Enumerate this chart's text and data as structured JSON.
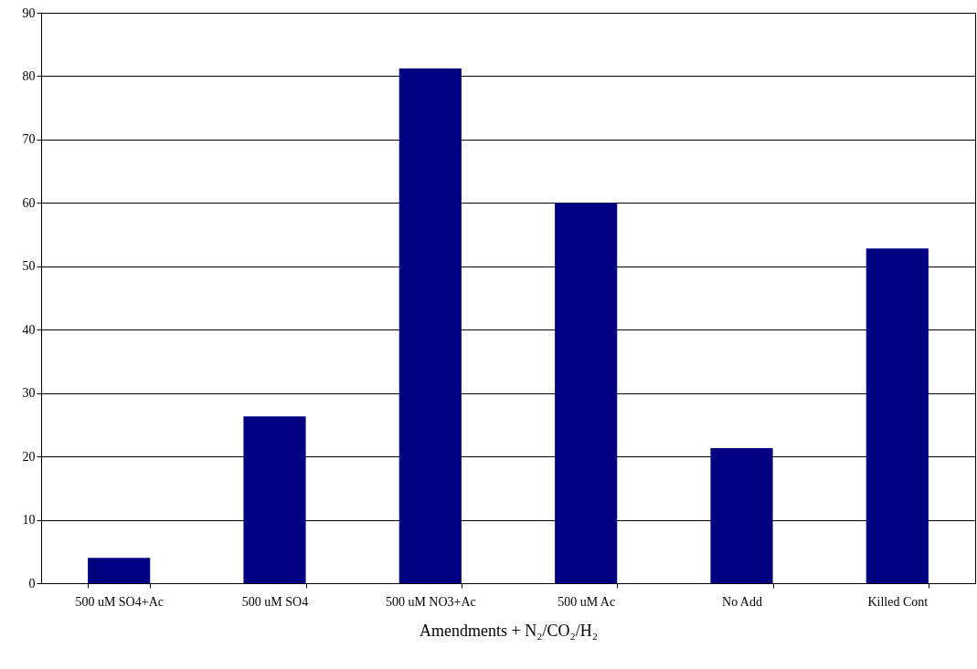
{
  "chart_data": {
    "type": "bar",
    "xlabel": "Amendments + N₂/CO₂/H₂",
    "categories": [
      "500 uM SO4+Ac",
      "500 uM SO4",
      "500 uM NO3+Ac",
      "500 uM Ac",
      "No Add",
      "Killed Cont"
    ],
    "values": [
      4,
      26.3,
      81.2,
      60,
      21.3,
      52.8
    ],
    "color": "#000080",
    "ylim": [
      0,
      90
    ],
    "yticks": [
      0,
      10,
      20,
      30,
      40,
      50,
      60,
      70,
      80,
      90
    ],
    "grid": "y"
  }
}
